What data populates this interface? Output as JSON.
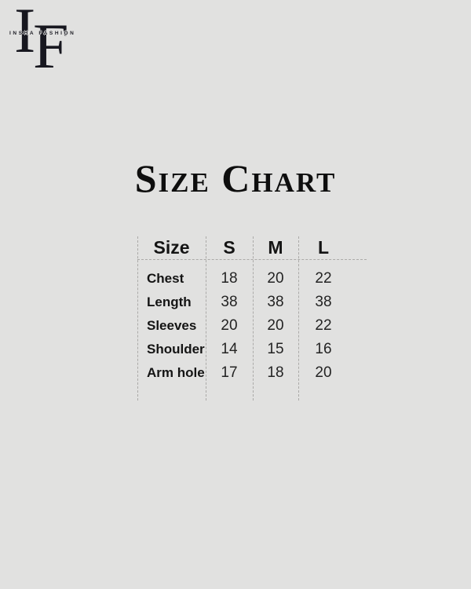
{
  "brand": {
    "initial_i": "I",
    "initial_f": "F",
    "name": "INSHA FASHION"
  },
  "chart_data": {
    "type": "table",
    "title": "Size Chart",
    "columns": [
      "Size",
      "S",
      "M",
      "L"
    ],
    "rows": [
      {
        "label": "Chest",
        "values": [
          18,
          20,
          22
        ]
      },
      {
        "label": "Length",
        "values": [
          38,
          38,
          38
        ]
      },
      {
        "label": "Sleeves",
        "values": [
          20,
          20,
          22
        ]
      },
      {
        "label": "Shoulder",
        "values": [
          14,
          15,
          16
        ]
      },
      {
        "label": "Arm hole",
        "values": [
          17,
          18,
          20
        ]
      }
    ]
  },
  "colors": {
    "background": "#e1e1e0",
    "text": "#161616",
    "grid_line": "#abaaa8",
    "logo": "#17171f"
  }
}
